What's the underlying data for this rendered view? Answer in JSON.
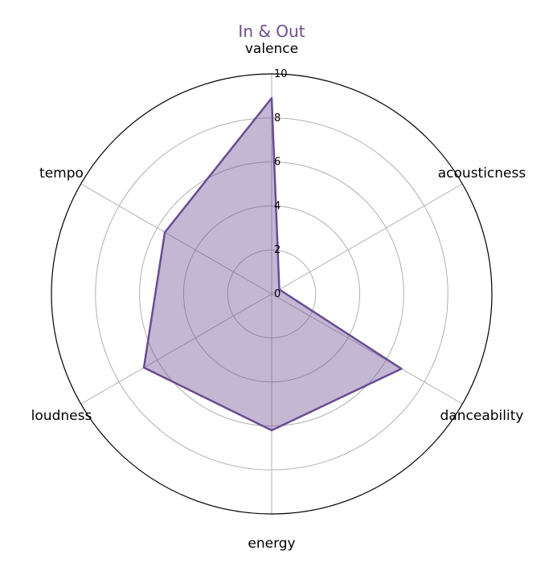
{
  "chart_data": {
    "type": "radar",
    "title": "In & Out",
    "axes": [
      "valence",
      "acousticness",
      "danceability",
      "energy",
      "loudness",
      "tempo"
    ],
    "series": [
      {
        "values": [
          8.9,
          0.4,
          6.8,
          6.2,
          6.7,
          5.6
        ]
      }
    ],
    "rlim": [
      0,
      10
    ],
    "rticks": [
      "0",
      "2",
      "4",
      "6",
      "8",
      "10"
    ],
    "grid": true,
    "colors": {
      "title": "#6b4f8e",
      "line": "#6a4c93",
      "fill": "#6a4c93",
      "grid": "#b0b0b0",
      "spine": "#000000"
    }
  }
}
